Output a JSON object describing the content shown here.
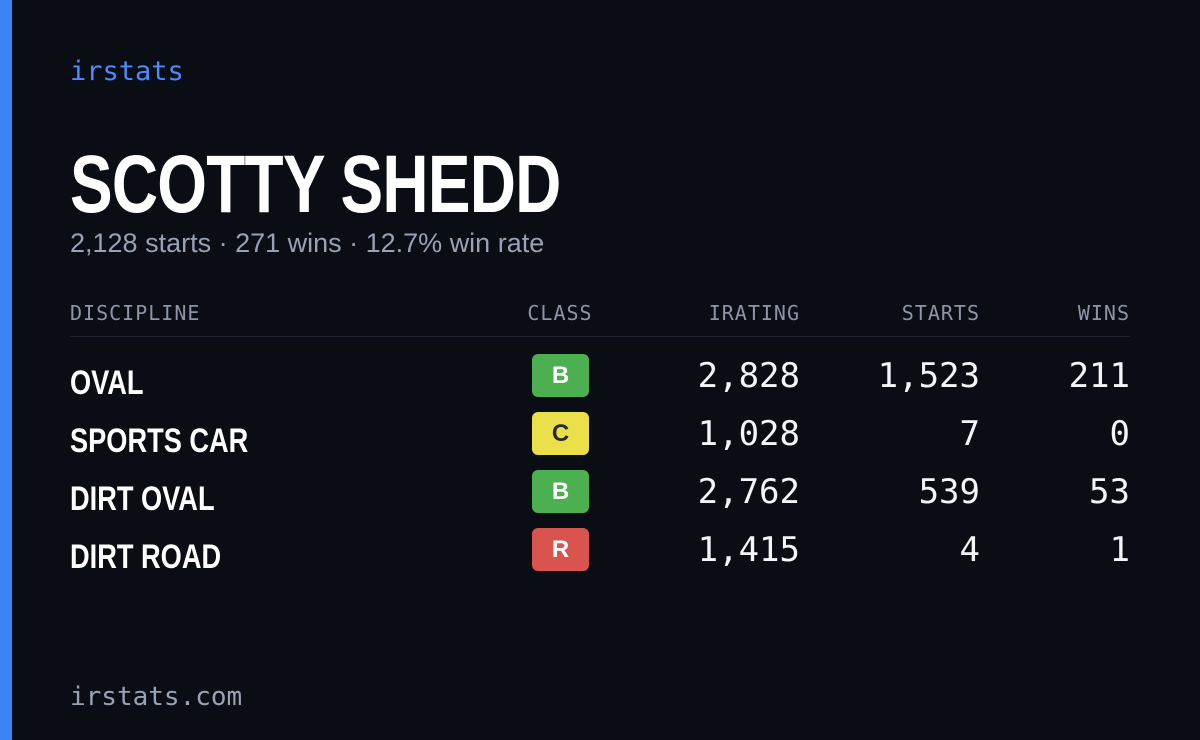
{
  "brand": "irstats",
  "name": "SCOTTY SHEDD",
  "summary": "2,128 starts · 271 wins · 12.7% win rate",
  "table": {
    "columns": [
      "DISCIPLINE",
      "CLASS",
      "IRATING",
      "STARTS",
      "WINS"
    ],
    "rows": [
      {
        "discipline": "OVAL",
        "class": "B",
        "class_color": "#4caf50",
        "irating": "2,828",
        "starts": "1,523",
        "wins": "211"
      },
      {
        "discipline": "SPORTS CAR",
        "class": "C",
        "class_color": "#ebe04a",
        "irating": "1,028",
        "starts": "7",
        "wins": "0"
      },
      {
        "discipline": "DIRT OVAL",
        "class": "B",
        "class_color": "#4caf50",
        "irating": "2,762",
        "starts": "539",
        "wins": "53"
      },
      {
        "discipline": "DIRT ROAD",
        "class": "R",
        "class_color": "#d9534f",
        "irating": "1,415",
        "starts": "4",
        "wins": "1"
      }
    ]
  },
  "footer": "irstats.com"
}
